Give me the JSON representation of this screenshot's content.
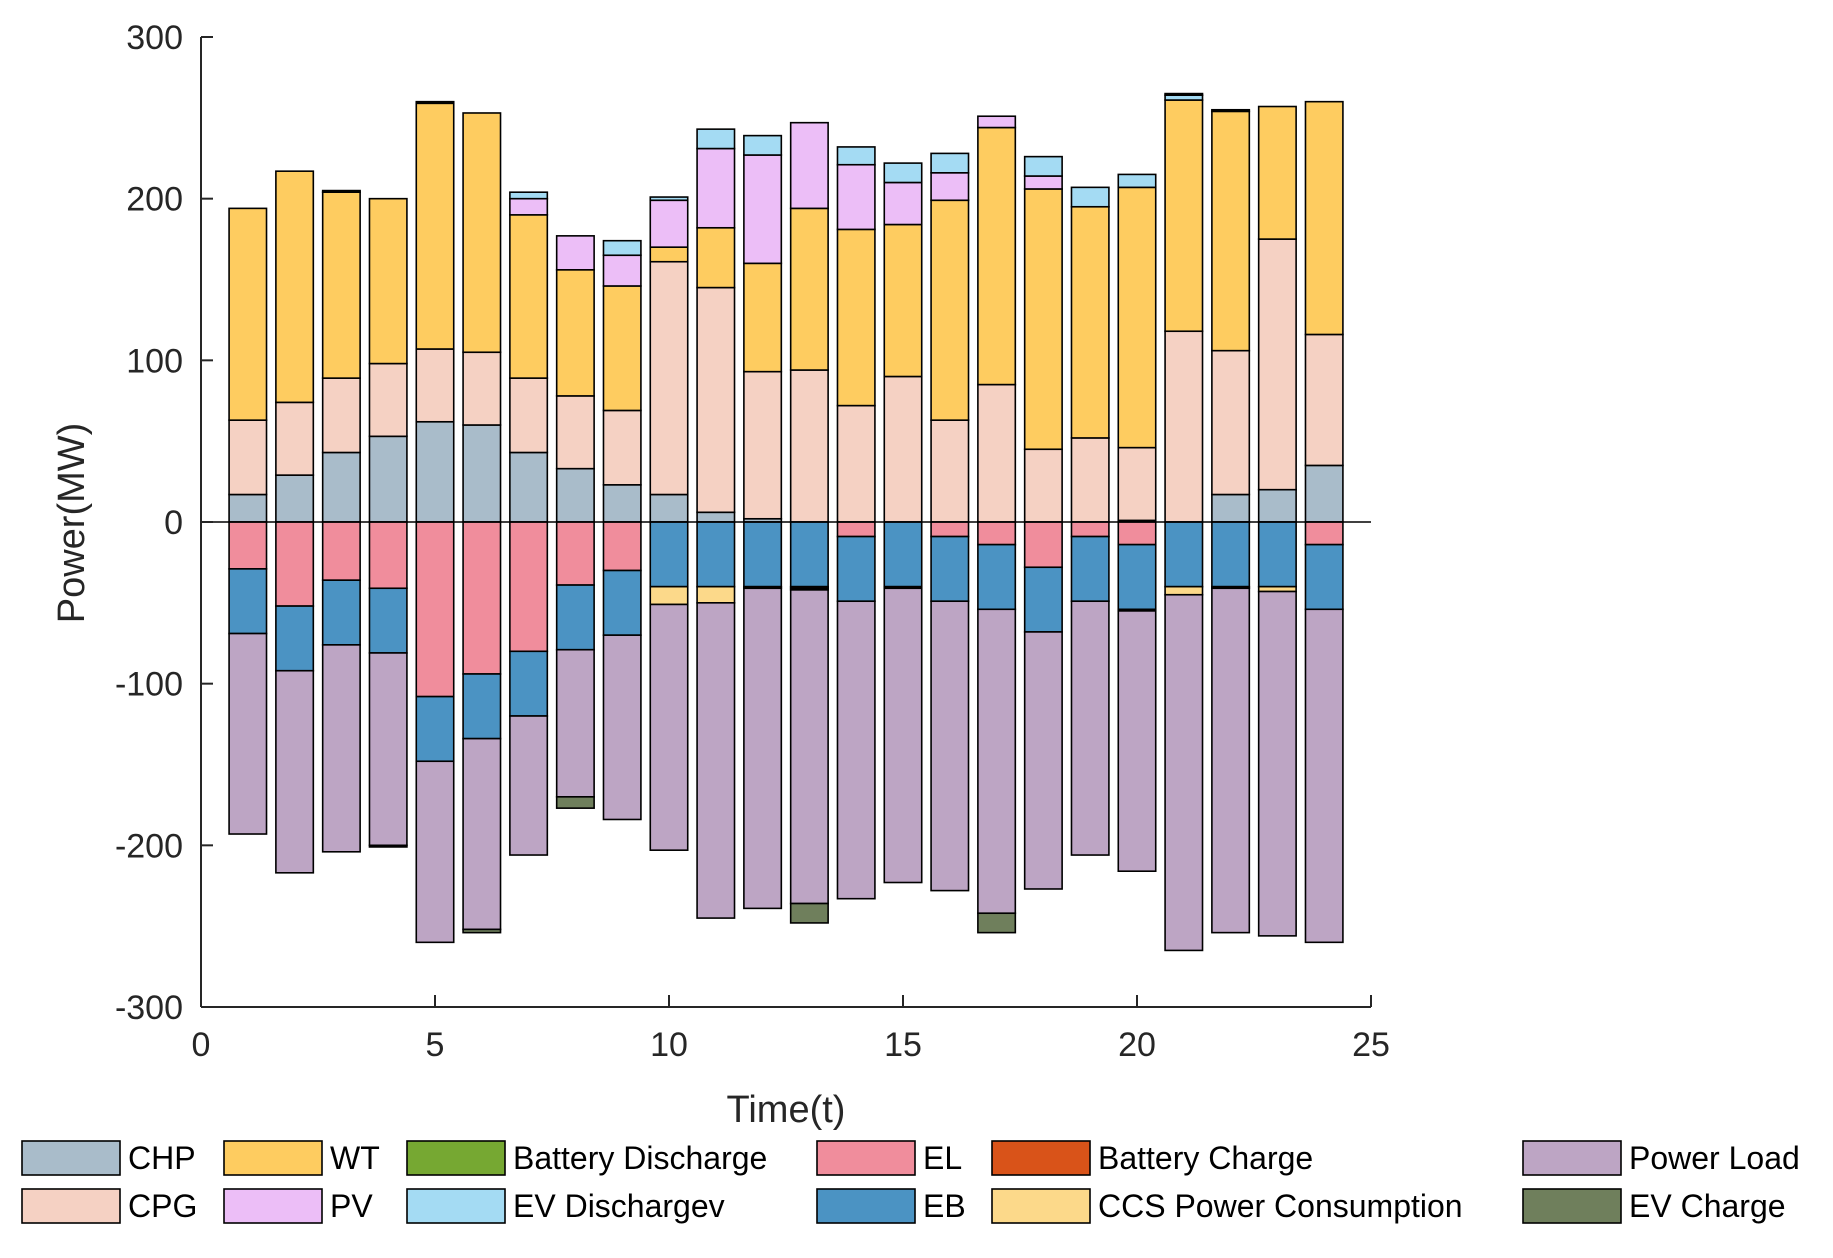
{
  "chart_data": {
    "type": "bar",
    "stacked": true,
    "xlabel": "Time(t)",
    "ylabel": "Power(MW)",
    "xlim": [
      0,
      25
    ],
    "ylim": [
      -300,
      300
    ],
    "xticks": [
      0,
      5,
      10,
      15,
      20,
      25
    ],
    "yticks": [
      -300,
      -200,
      -100,
      0,
      100,
      200,
      300
    ],
    "x": [
      1,
      2,
      3,
      4,
      5,
      6,
      7,
      8,
      9,
      10,
      11,
      12,
      13,
      14,
      15,
      16,
      17,
      18,
      19,
      20,
      21,
      22,
      23,
      24
    ],
    "series": [
      {
        "name": "CHP",
        "color": "#a9bcca",
        "sign": "positive",
        "values": [
          17,
          29,
          43,
          53,
          62,
          60,
          43,
          33,
          23,
          17,
          6,
          2,
          0,
          0,
          0,
          0,
          0,
          0,
          0,
          1,
          0,
          17,
          20,
          35
        ]
      },
      {
        "name": "CPG",
        "color": "#f5d1c3",
        "sign": "positive",
        "values": [
          46,
          45,
          46,
          45,
          45,
          45,
          46,
          45,
          46,
          144,
          139,
          91,
          94,
          72,
          90,
          63,
          85,
          45,
          52,
          45,
          118,
          89,
          155,
          81
        ]
      },
      {
        "name": "WT",
        "color": "#fecc60",
        "sign": "positive",
        "values": [
          131,
          143,
          115,
          102,
          152,
          148,
          101,
          78,
          77,
          9,
          37,
          67,
          100,
          109,
          94,
          136,
          159,
          161,
          143,
          161,
          143,
          148,
          82,
          144
        ]
      },
      {
        "name": "PV",
        "color": "#ecbef7",
        "sign": "positive",
        "values": [
          0,
          0,
          0,
          0,
          0,
          0,
          10,
          21,
          19,
          29,
          49,
          67,
          53,
          40,
          26,
          17,
          7,
          8,
          0,
          0,
          0,
          0,
          0,
          0
        ]
      },
      {
        "name": "EV Dischargev",
        "color": "#a4dbf3",
        "sign": "positive",
        "values": [
          0,
          0,
          0,
          0,
          0,
          0,
          4,
          0,
          9,
          2,
          12,
          12,
          0,
          11,
          12,
          12,
          0,
          12,
          12,
          8,
          3,
          0,
          0,
          0
        ]
      },
      {
        "name": "Battery Discharge",
        "color": "#76a832",
        "sign": "positive",
        "values": [
          0,
          0,
          1,
          0,
          1,
          0,
          0,
          0,
          0,
          0,
          0,
          0,
          0,
          0,
          0,
          0,
          0,
          0,
          0,
          0,
          1,
          1,
          0,
          0
        ]
      },
      {
        "name": "EL",
        "color": "#f08d9c",
        "sign": "negative",
        "values": [
          -29,
          -52,
          -36,
          -41,
          -108,
          -94,
          -80,
          -39,
          -30,
          0,
          0,
          0,
          0,
          -9,
          0,
          -9,
          -14,
          -28,
          -9,
          -14,
          0,
          0,
          0,
          -14
        ]
      },
      {
        "name": "EB",
        "color": "#4b93c3",
        "sign": "negative",
        "values": [
          -40,
          -40,
          -40,
          -40,
          -40,
          -40,
          -40,
          -40,
          -40,
          -40,
          -40,
          -40,
          -40,
          -40,
          -40,
          -40,
          -40,
          -40,
          -40,
          -40,
          -40,
          -40,
          -40,
          -40
        ]
      },
      {
        "name": "Battery Charge",
        "color": "#d95319",
        "sign": "negative",
        "values": [
          0,
          0,
          0,
          0,
          0,
          0,
          0,
          0,
          0,
          0,
          0,
          -1,
          -1,
          0,
          -1,
          0,
          0,
          0,
          0,
          -1,
          0,
          -1,
          0,
          0
        ]
      },
      {
        "name": "CCS Power Consumption",
        "color": "#fcd98a",
        "sign": "negative",
        "values": [
          0,
          0,
          0,
          0,
          0,
          0,
          0,
          0,
          0,
          -11,
          -10,
          0,
          -1,
          0,
          0,
          0,
          0,
          0,
          0,
          0,
          -5,
          0,
          -3,
          0
        ]
      },
      {
        "name": "Power Load",
        "color": "#bda5c4",
        "sign": "negative",
        "values": [
          -124,
          -125,
          -128,
          -119,
          -112,
          -118,
          -86,
          -91,
          -114,
          -152,
          -195,
          -198,
          -194,
          -184,
          -182,
          -179,
          -188,
          -159,
          -157,
          -161,
          -220,
          -213,
          -213,
          -206
        ]
      },
      {
        "name": "EV Charge",
        "color": "#6f7f5c",
        "sign": "negative",
        "values": [
          0,
          0,
          0,
          -1,
          0,
          -2,
          0,
          -7,
          0,
          0,
          0,
          0,
          -12,
          0,
          0,
          0,
          -12,
          0,
          0,
          0,
          0,
          0,
          0,
          0
        ]
      }
    ],
    "legend": {
      "placement": "bottom",
      "columns": [
        [
          "CHP",
          "CPG"
        ],
        [
          "WT",
          "PV"
        ],
        [
          "Battery Discharge",
          "EV Dischargev"
        ],
        [
          "EL",
          "EB"
        ],
        [
          "Battery Charge",
          "CCS Power Consumption"
        ],
        [
          "Power Load",
          "EV Charge"
        ]
      ]
    }
  }
}
